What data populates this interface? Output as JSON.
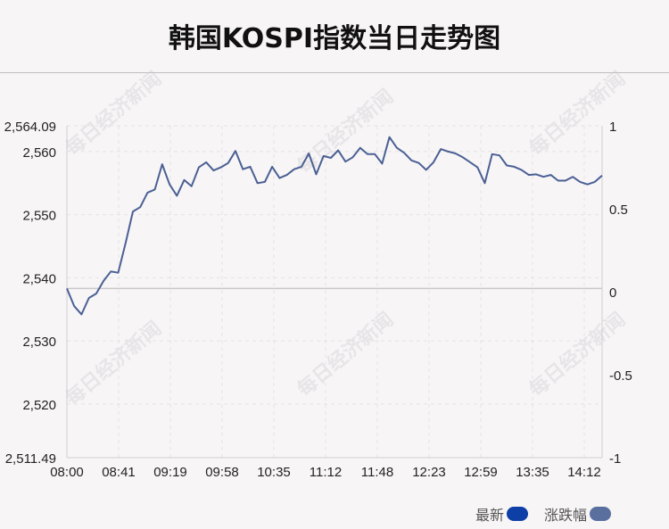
{
  "title": "韩国KOSPI指数当日走势图",
  "watermark": "每日经济新闻",
  "legend": [
    {
      "label": "最新",
      "color": "#0d3fa6"
    },
    {
      "label": "涨跌幅",
      "color": "#5a6f9e"
    }
  ],
  "colors": {
    "line": "#4a6093",
    "background": "#f8f5f7",
    "grid": "#d9d9d9",
    "zero_line": "#c9c9c9"
  },
  "chart_data": {
    "type": "line",
    "title": "韩国KOSPI指数当日走势图",
    "x_ticks": [
      "08:00",
      "08:41",
      "09:19",
      "09:58",
      "10:35",
      "11:12",
      "11:48",
      "12:23",
      "12:59",
      "13:35",
      "14:12"
    ],
    "y_left": {
      "ticks": [
        2564.09,
        2560,
        2550,
        2540,
        2530,
        2520,
        2511.49
      ],
      "tick_labels": [
        "2,564.09",
        "2,560",
        "2,550",
        "2,540",
        "2,530",
        "2,520",
        "2,511.49"
      ],
      "range": [
        2511.49,
        2564.09
      ]
    },
    "y_right": {
      "ticks": [
        1,
        0.5,
        0,
        -0.5,
        -1
      ],
      "tick_labels": [
        "1",
        "0.5",
        "0",
        "-0.5",
        "-1"
      ],
      "range": [
        -1,
        1
      ]
    },
    "reference_value": 2538.3,
    "series": [
      {
        "name": "最新",
        "x_range": [
          "08:00",
          "14:15"
        ],
        "values": [
          2538.3,
          2535.5,
          2534.2,
          2536.8,
          2537.5,
          2539.5,
          2541.0,
          2540.8,
          2545.5,
          2550.5,
          2551.2,
          2553.5,
          2554.0,
          2558.0,
          2554.8,
          2553.0,
          2555.5,
          2554.5,
          2557.5,
          2558.3,
          2557.0,
          2557.5,
          2558.2,
          2560.1,
          2557.2,
          2557.6,
          2555.0,
          2555.2,
          2557.6,
          2555.8,
          2556.3,
          2557.2,
          2557.6,
          2559.7,
          2556.4,
          2559.3,
          2559.0,
          2560.2,
          2558.4,
          2559.1,
          2560.6,
          2559.6,
          2559.6,
          2558.1,
          2562.3,
          2560.6,
          2559.8,
          2558.6,
          2558.2,
          2557.1,
          2558.3,
          2560.4,
          2560.0,
          2559.7,
          2559.1,
          2558.3,
          2557.5,
          2555.0,
          2559.6,
          2559.4,
          2557.8,
          2557.6,
          2557.1,
          2556.3,
          2556.4,
          2556.0,
          2556.3,
          2555.4,
          2555.4,
          2556.0,
          2555.2,
          2554.8,
          2555.2,
          2556.2
        ]
      }
    ],
    "grid": true,
    "legend_position": "bottom-right"
  }
}
